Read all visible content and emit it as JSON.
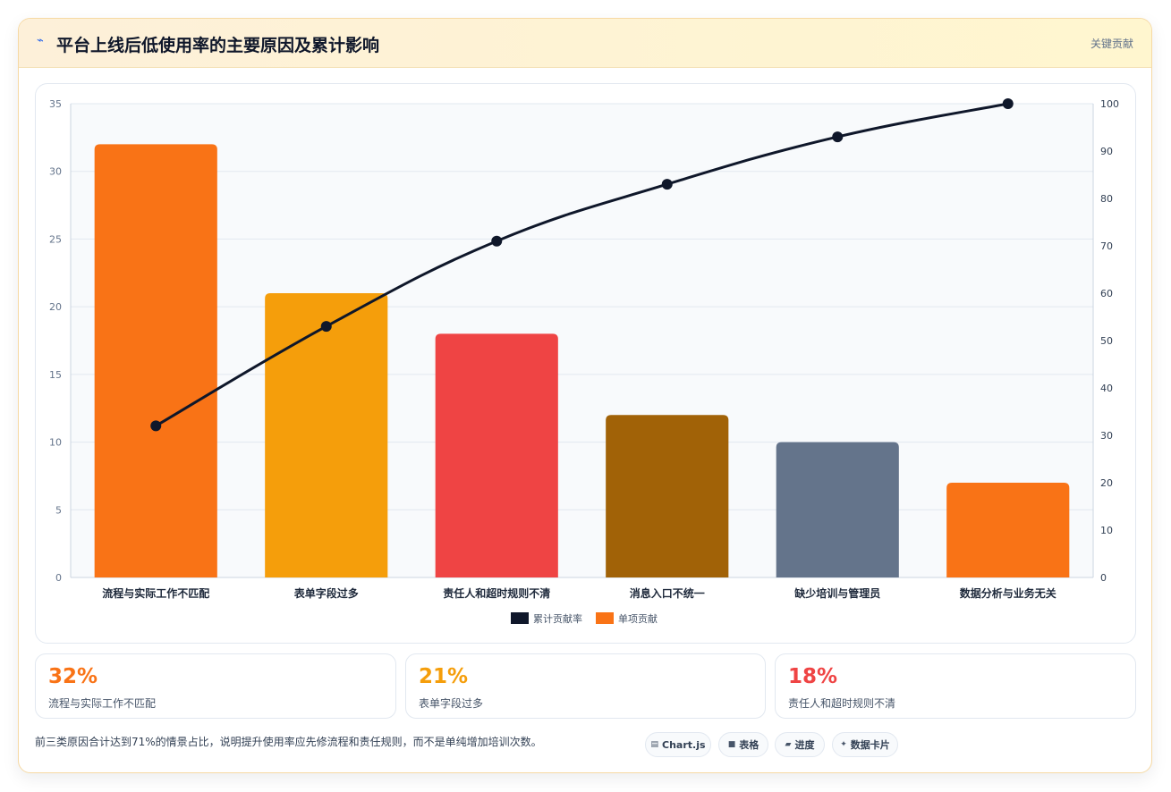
{
  "header": {
    "icon": "lightning-icon",
    "icon_glyph": "⌁",
    "title": "平台上线后低使用率的主要原因及累计影响",
    "badge": "关键贡献"
  },
  "chart_data": {
    "type": "bar",
    "categories": [
      "流程与实际工作不匹配",
      "表单字段过多",
      "责任人和超时规则不清",
      "消息入口不统一",
      "缺少培训与管理员",
      "数据分析与业务无关"
    ],
    "series": [
      {
        "name": "单项贡献",
        "type": "bar",
        "axis": "left",
        "values": [
          32,
          21,
          18,
          12,
          10,
          7
        ],
        "colors": [
          "#f97316",
          "#f59e0b",
          "#ef4444",
          "#a16207",
          "#64748b",
          "#f97316"
        ]
      },
      {
        "name": "累计贡献率",
        "type": "line",
        "axis": "right",
        "values": [
          32,
          53,
          71,
          83,
          93,
          100
        ],
        "color": "#0f172a"
      }
    ],
    "left_axis": {
      "min": 0,
      "max": 35,
      "ticks": [
        0,
        5,
        10,
        15,
        20,
        25,
        30,
        35
      ]
    },
    "right_axis": {
      "min": 0,
      "max": 100,
      "ticks": [
        0,
        10,
        20,
        30,
        40,
        50,
        60,
        70,
        80,
        90,
        100
      ]
    },
    "legend": {
      "position": "bottom",
      "items": [
        {
          "label": "累计贡献率",
          "color": "#0f172a"
        },
        {
          "label": "单项贡献",
          "color": "#f97316"
        }
      ]
    },
    "grid": true
  },
  "stats": [
    {
      "value": "32%",
      "label": "流程与实际工作不匹配",
      "color": "#f97316"
    },
    {
      "value": "21%",
      "label": "表单字段过多",
      "color": "#f59e0b"
    },
    {
      "value": "18%",
      "label": "责任人和超时规则不清",
      "color": "#ef4444"
    }
  ],
  "footer": {
    "note": "前三类原因合计达到71%的情景占比，说明提升使用率应先修流程和责任规则，而不是单纯增加培训次数。",
    "tags": [
      {
        "icon": "chart-icon",
        "glyph": "▤",
        "label": "Chart.js"
      },
      {
        "icon": "table-icon",
        "glyph": "■",
        "label": "表格"
      },
      {
        "icon": "progress-icon",
        "glyph": "▰",
        "label": "进度"
      },
      {
        "icon": "card-icon",
        "glyph": "✦",
        "label": "数据卡片"
      }
    ]
  }
}
